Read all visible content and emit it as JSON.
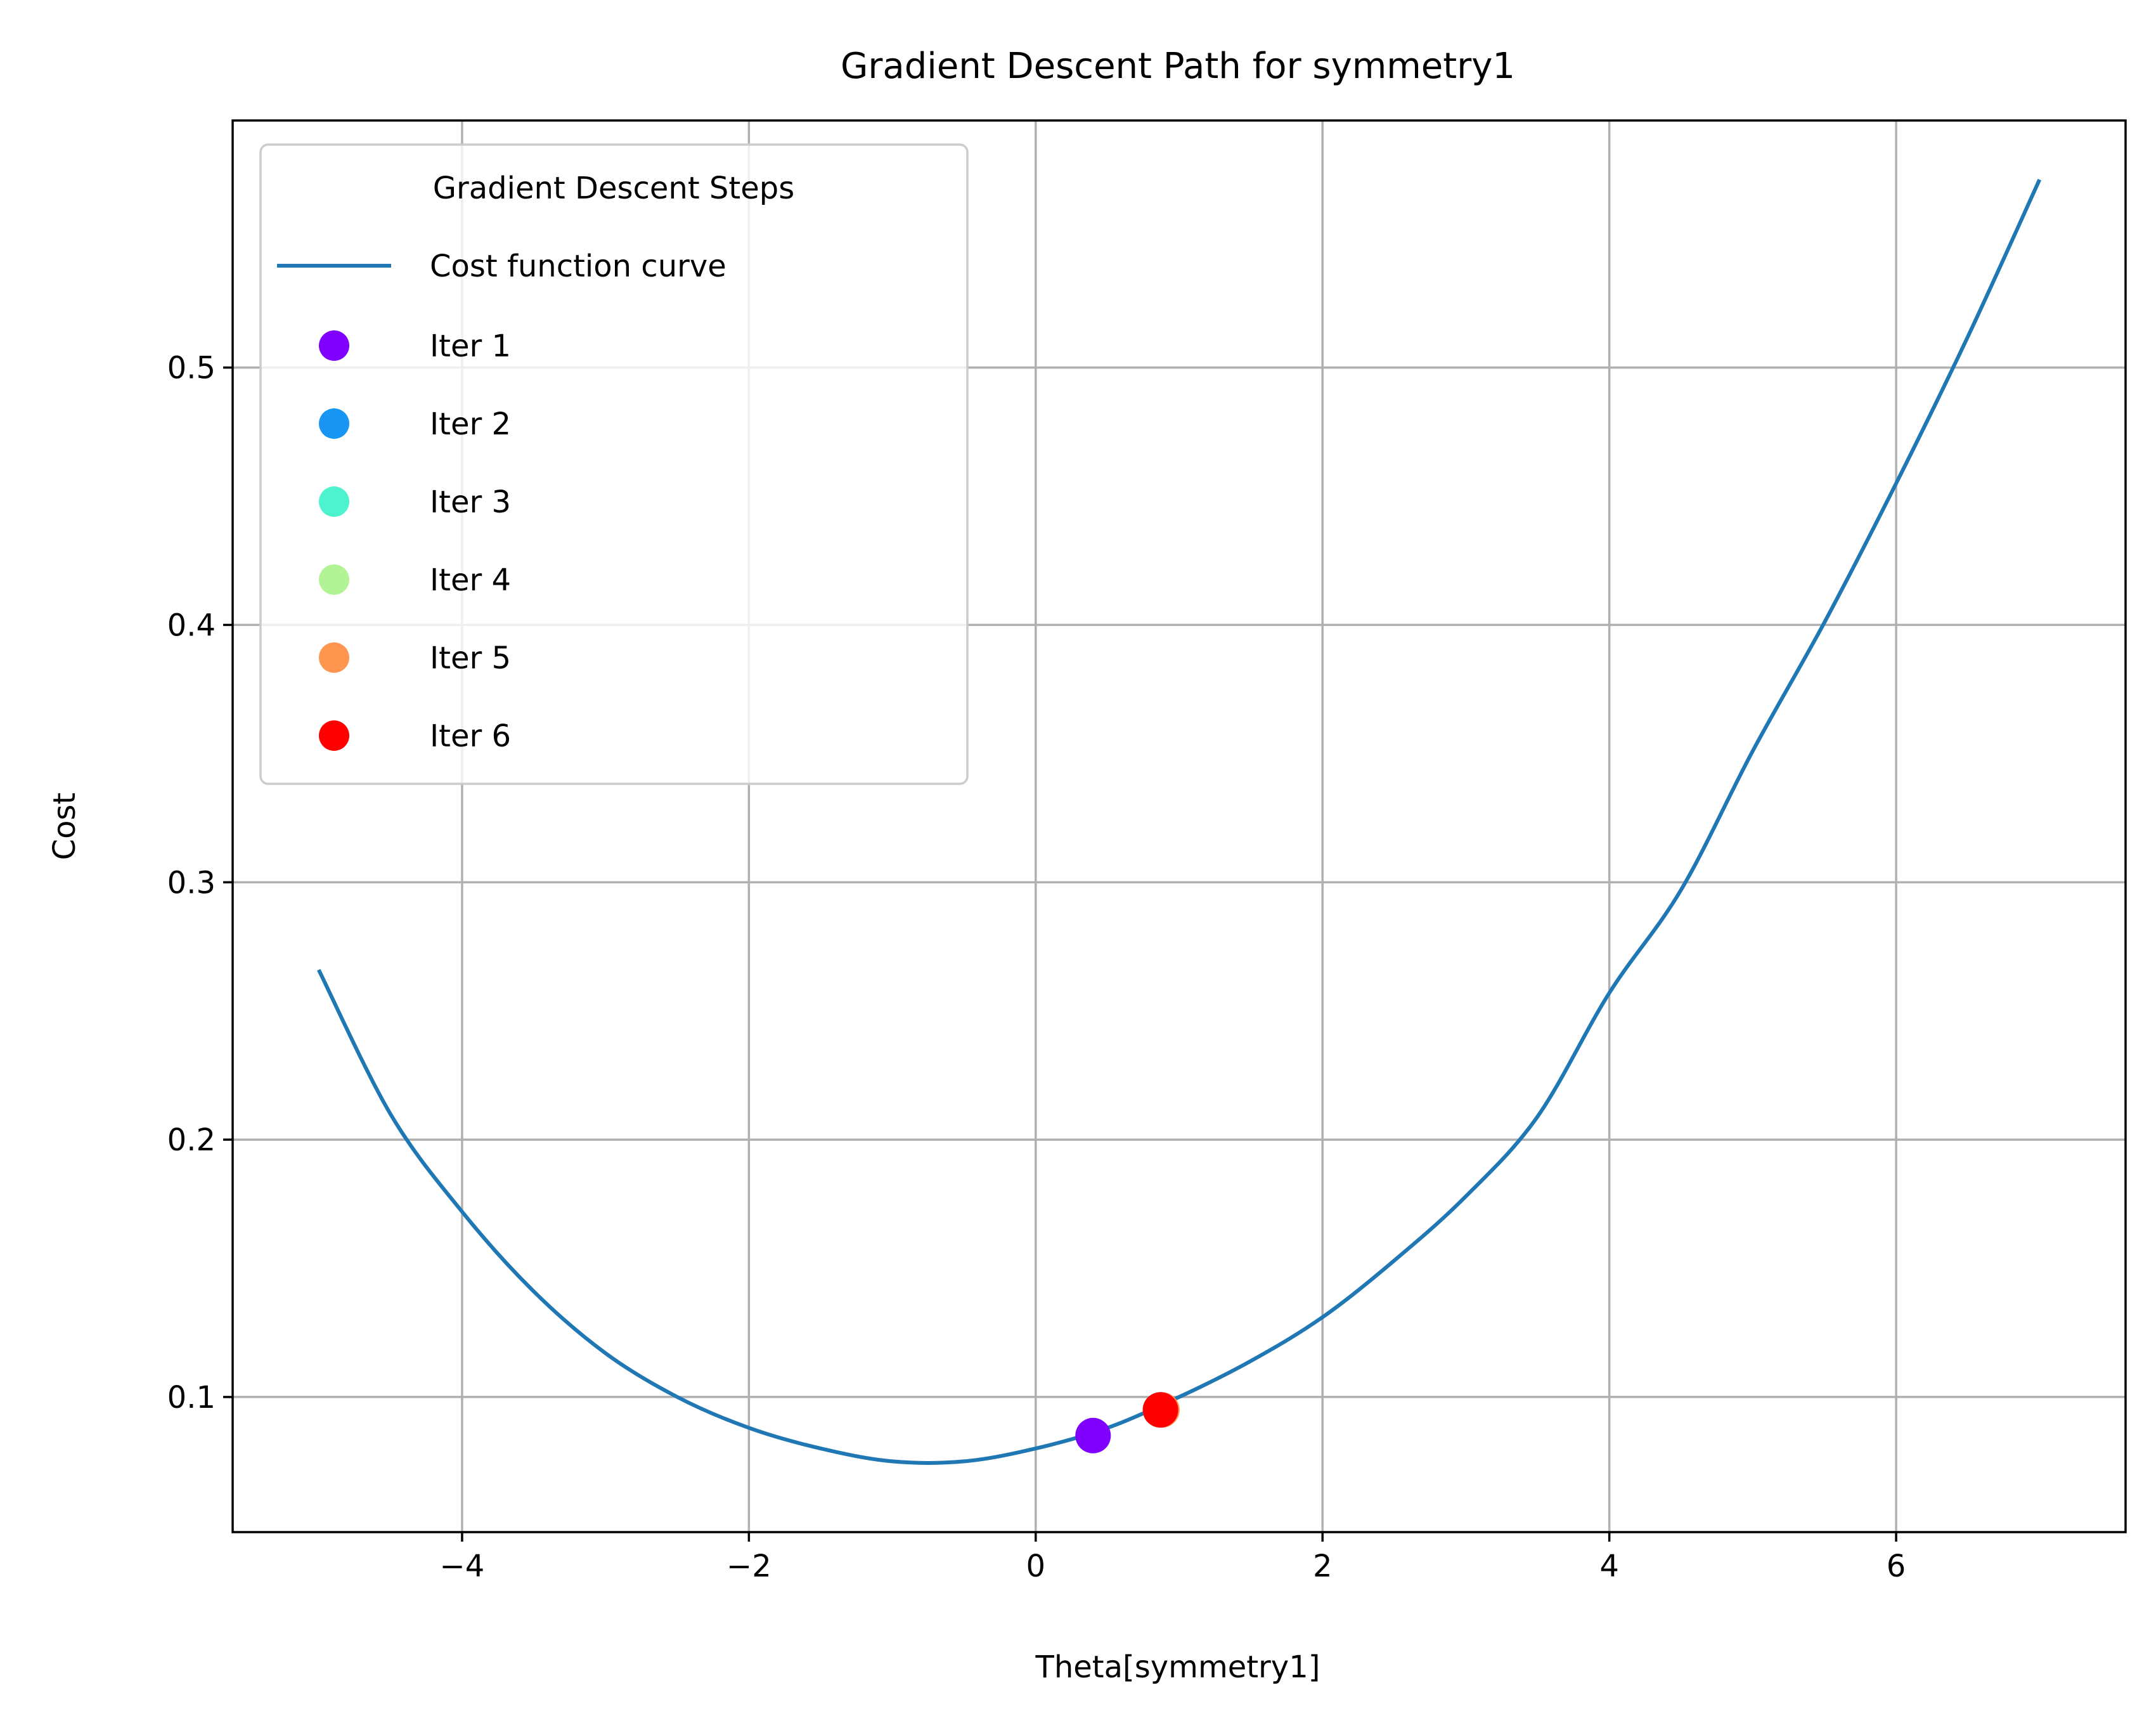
{
  "chart_data": {
    "type": "line",
    "title": "Gradient Descent Path for symmetry1",
    "xlabel": "Theta[symmetry1]",
    "ylabel": "Cost",
    "xlim": [
      -5.6,
      7.6
    ],
    "ylim": [
      0.0475,
      0.596
    ],
    "grid": true,
    "x_ticks": [
      -4,
      -2,
      0,
      2,
      4,
      6
    ],
    "x_tick_labels": [
      "−4",
      "−2",
      "0",
      "2",
      "4",
      "6"
    ],
    "y_ticks": [
      0.1,
      0.2,
      0.3,
      0.4,
      0.5
    ],
    "y_tick_labels": [
      "0.1",
      "0.2",
      "0.3",
      "0.4",
      "0.5"
    ],
    "legend": {
      "title": "Gradient Descent Steps",
      "placement": "upper-left"
    },
    "curve": {
      "name": "Cost function curve",
      "color": "#1f77b4",
      "x": [
        -5.0,
        -4.5,
        -4.0,
        -3.5,
        -3.0,
        -2.5,
        -2.0,
        -1.5,
        -1.0,
        -0.5,
        0.0,
        0.5,
        1.0,
        1.5,
        2.0,
        2.5,
        3.0,
        3.5,
        4.0,
        4.5,
        5.0,
        5.5,
        6.0,
        6.5,
        7.0
      ],
      "y": [
        0.266,
        0.21,
        0.172,
        0.141,
        0.117,
        0.1,
        0.088,
        0.08,
        0.075,
        0.075,
        0.08,
        0.088,
        0.1,
        0.114,
        0.131,
        0.153,
        0.178,
        0.209,
        0.257,
        0.297,
        0.351,
        0.401,
        0.455,
        0.512,
        0.573
      ]
    },
    "series": [
      {
        "name": "Iter 1",
        "color": "#8000ff",
        "x": 0.4,
        "y": 0.085
      },
      {
        "name": "Iter 2",
        "color": "#1996f3",
        "x": 0.87,
        "y": 0.095
      },
      {
        "name": "Iter 3",
        "color": "#4df3ce",
        "x": 0.87,
        "y": 0.095
      },
      {
        "name": "Iter 4",
        "color": "#b2f396",
        "x": 0.87,
        "y": 0.095
      },
      {
        "name": "Iter 5",
        "color": "#ff964f",
        "x": 0.88,
        "y": 0.095
      },
      {
        "name": "Iter 6",
        "color": "#ff0000",
        "x": 0.87,
        "y": 0.095
      }
    ]
  }
}
